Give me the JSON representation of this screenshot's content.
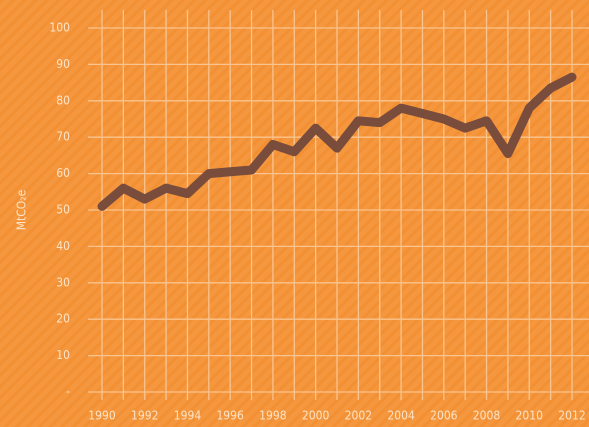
{
  "chart_data": {
    "type": "line",
    "ylabel": "MtCO₂e",
    "x": [
      1990,
      1991,
      1992,
      1993,
      1994,
      1995,
      1996,
      1997,
      1998,
      1999,
      2000,
      2001,
      2002,
      2003,
      2004,
      2005,
      2006,
      2007,
      2008,
      2009,
      2010,
      2011,
      2012
    ],
    "series": [
      {
        "color": "#7a4c3b",
        "values": [
          51,
          56,
          53,
          56,
          54.5,
          60,
          60.5,
          61,
          68,
          66,
          72.5,
          67,
          74.5,
          74,
          78,
          76.5,
          75,
          72.5,
          74.5,
          65.5,
          78,
          83.5,
          86.5
        ]
      }
    ],
    "xlim": [
      1990,
      2012
    ],
    "xticks": [
      1990,
      1992,
      1994,
      1996,
      1998,
      2000,
      2002,
      2004,
      2006,
      2008,
      2010,
      2012
    ],
    "x_minor_ticks": [
      1991,
      1993,
      1995,
      1997,
      1999,
      2001,
      2003,
      2005,
      2007,
      2009,
      2011
    ],
    "ylim": [
      0,
      100
    ],
    "yticks": [
      {
        "value": 0,
        "label": "-"
      },
      10,
      20,
      30,
      40,
      50,
      60,
      70,
      80,
      90,
      100
    ],
    "grid": true
  }
}
